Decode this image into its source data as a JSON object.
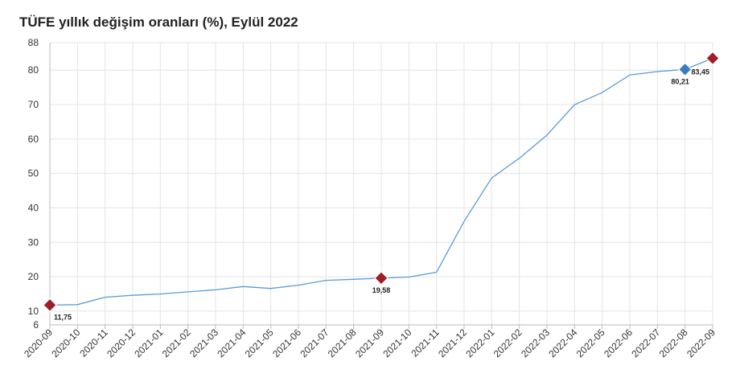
{
  "chart_data": {
    "type": "line",
    "title": "TÜFE yıllık değişim oranları (%), Eylül 2022",
    "xlabel": "",
    "ylabel": "",
    "categories": [
      "2020-09",
      "2020-10",
      "2020-11",
      "2020-12",
      "2021-01",
      "2021-02",
      "2021-03",
      "2021-04",
      "2021-05",
      "2021-06",
      "2021-07",
      "2021-08",
      "2021-09",
      "2021-10",
      "2021-11",
      "2021-12",
      "2022-01",
      "2022-02",
      "2022-03",
      "2022-04",
      "2022-05",
      "2022-06",
      "2022-07",
      "2022-08",
      "2022-09"
    ],
    "values": [
      11.75,
      11.89,
      14.03,
      14.6,
      14.97,
      15.61,
      16.19,
      17.14,
      16.59,
      17.53,
      18.95,
      19.25,
      19.58,
      19.89,
      21.31,
      36.08,
      48.69,
      54.44,
      61.14,
      69.97,
      73.5,
      78.62,
      79.6,
      80.21,
      83.45
    ],
    "ylim": [
      6,
      88
    ],
    "yticks": [
      6,
      10,
      20,
      30,
      40,
      50,
      60,
      70,
      80,
      88
    ],
    "highlights": [
      {
        "index": 0,
        "label": "11,75",
        "color": "#a01d2a"
      },
      {
        "index": 12,
        "label": "19,58",
        "color": "#a01d2a"
      },
      {
        "index": 23,
        "label": "80,21",
        "color": "#3a7dbf"
      },
      {
        "index": 24,
        "label": "83,45",
        "color": "#a01d2a"
      }
    ],
    "line_color": "#5b9bd5",
    "grid": true,
    "legend": "none"
  }
}
